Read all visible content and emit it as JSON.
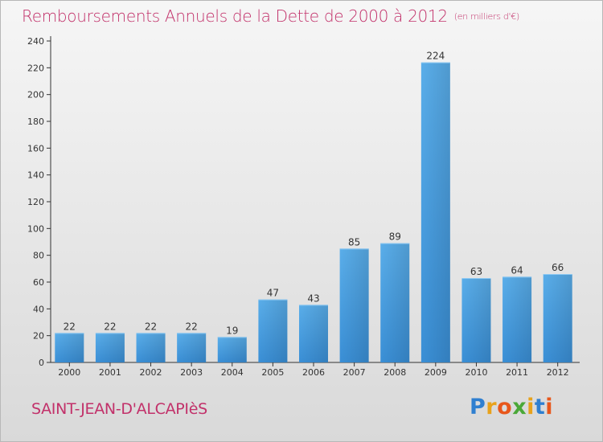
{
  "chart_data": {
    "type": "bar",
    "title": "Remboursements Annuels de la Dette de 2000 à 2012",
    "subtitle": "(en milliers d'€)",
    "categories": [
      "2000",
      "2001",
      "2002",
      "2003",
      "2004",
      "2005",
      "2006",
      "2007",
      "2008",
      "2009",
      "2010",
      "2011",
      "2012"
    ],
    "values": [
      22,
      22,
      22,
      22,
      19,
      47,
      43,
      85,
      89,
      224,
      63,
      64,
      66
    ],
    "ylim": [
      0,
      240
    ],
    "yticks": [
      0,
      20,
      40,
      60,
      80,
      100,
      120,
      140,
      160,
      180,
      200,
      220,
      240
    ],
    "grid": false,
    "bar_color": "#3a8fd6"
  },
  "footer": {
    "place": "SAINT-JEAN-D'ALCAPIèS",
    "logo": {
      "text": "Proxiti",
      "letter_colors": [
        "#2f7fd0",
        "#e8a21b",
        "#e8571b",
        "#4aa838",
        "#e8a21b",
        "#2f7fd0",
        "#e8571b"
      ]
    }
  }
}
